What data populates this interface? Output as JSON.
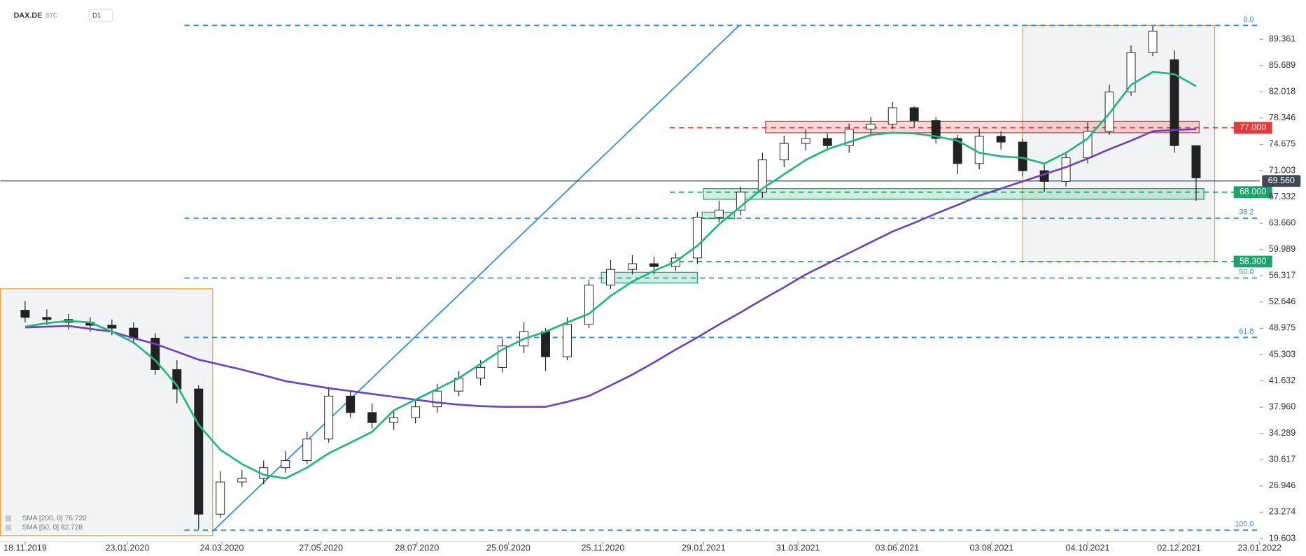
{
  "header": {
    "symbol": "DAX.DE",
    "tag": "STC",
    "timeframe": "D1"
  },
  "chart_data": {
    "type": "candlestick",
    "xlim": [
      "2019-11-02",
      "2022-01-23"
    ],
    "ylim": [
      19.14,
      94.85
    ],
    "xticks": [
      {
        "value": "2019-11-18",
        "label": "18.11.2019"
      },
      {
        "value": "2020-01-23",
        "label": "23.01.2020"
      },
      {
        "value": "2020-03-24",
        "label": "24.03.2020"
      },
      {
        "value": "2020-05-27",
        "label": "27.05.2020"
      },
      {
        "value": "2020-07-28",
        "label": "28.07.2020"
      },
      {
        "value": "2020-09-25",
        "label": "25.09.2020"
      },
      {
        "value": "2020-11-25",
        "label": "25.11.2020"
      },
      {
        "value": "2021-01-29",
        "label": "29.01.2021"
      },
      {
        "value": "2021-03-31",
        "label": "31.03.2021"
      },
      {
        "value": "2021-06-03",
        "label": "03.06.2021"
      },
      {
        "value": "2021-08-03",
        "label": "03.08.2021"
      },
      {
        "value": "2021-10-04",
        "label": "04.10.2021"
      },
      {
        "value": "2021-12-02",
        "label": "02.12.2021"
      },
      {
        "value": "2022-01-23",
        "label": "23.01.2022"
      }
    ],
    "yticks": [
      89.361,
      85.689,
      82.018,
      78.346,
      74.675,
      71.003,
      67.332,
      {
        "value": 63.66,
        "label": "63.660"
      },
      59.989,
      56.317,
      52.646,
      48.975,
      45.303,
      41.632,
      {
        "value": 37.96,
        "label": "37.960"
      },
      34.289,
      30.617,
      26.946,
      23.274,
      19.603
    ],
    "candles": {
      "x": [
        "2019-11-18",
        "2019-12-02",
        "2019-12-16",
        "2019-12-30",
        "2020-01-13",
        "2020-01-27",
        "2020-02-10",
        "2020-02-24",
        "2020-03-09",
        "2020-03-23",
        "2020-04-06",
        "2020-04-20",
        "2020-05-04",
        "2020-05-18",
        "2020-06-01",
        "2020-06-15",
        "2020-06-29",
        "2020-07-13",
        "2020-07-27",
        "2020-08-10",
        "2020-08-24",
        "2020-09-07",
        "2020-09-21",
        "2020-10-05",
        "2020-10-19",
        "2020-11-02",
        "2020-11-16",
        "2020-11-30",
        "2020-12-14",
        "2020-12-28",
        "2021-01-11",
        "2021-01-25",
        "2021-02-08",
        "2021-02-22",
        "2021-03-08",
        "2021-03-22",
        "2021-04-05",
        "2021-04-19",
        "2021-05-03",
        "2021-05-17",
        "2021-05-31",
        "2021-06-14",
        "2021-06-28",
        "2021-07-12",
        "2021-07-26",
        "2021-08-09",
        "2021-08-23",
        "2021-09-06",
        "2021-09-20",
        "2021-10-04",
        "2021-10-18",
        "2021-11-01",
        "2021-11-15",
        "2021-11-29",
        "2021-12-13"
      ],
      "open": [
        51.5,
        50.5,
        50.2,
        49.8,
        49.4,
        49.0,
        47.6,
        43.2,
        40.5,
        23.0,
        27.5,
        28.0,
        29.5,
        30.5,
        33.5,
        39.5,
        37.2,
        35.8,
        36.5,
        38.0,
        40.2,
        42.0,
        43.5,
        46.5,
        48.5,
        45.0,
        49.5,
        55.0,
        57.2,
        58.0,
        57.6,
        58.8,
        64.5,
        65.5,
        68.0,
        72.5,
        74.8,
        75.5,
        74.5,
        76.8,
        77.5,
        79.8,
        78.0,
        75.5,
        72.0,
        75.8,
        75.0,
        71.0,
        69.5,
        72.8,
        76.5,
        82.0,
        87.5,
        86.5,
        74.5
      ],
      "high": [
        52.8,
        51.6,
        51.0,
        50.5,
        50.2,
        49.8,
        48.3,
        44.5,
        41.0,
        29.0,
        29.2,
        30.5,
        31.8,
        34.5,
        40.8,
        40.2,
        38.5,
        37.5,
        39.0,
        41.2,
        43.0,
        44.5,
        47.5,
        49.8,
        49.0,
        50.5,
        55.8,
        58.5,
        59.2,
        59.0,
        59.5,
        65.2,
        66.8,
        68.8,
        73.5,
        75.9,
        76.8,
        76.2,
        77.6,
        78.5,
        80.6,
        80.0,
        78.5,
        76.0,
        76.9,
        76.5,
        75.5,
        72.0,
        73.6,
        77.8,
        83.0,
        88.5,
        91.2,
        87.8,
        71.2
      ],
      "low": [
        49.8,
        49.4,
        48.8,
        48.5,
        48.0,
        46.8,
        42.5,
        38.5,
        20.9,
        22.5,
        26.8,
        27.2,
        28.8,
        30.0,
        33.0,
        36.5,
        35.0,
        34.8,
        35.7,
        37.2,
        39.5,
        41.0,
        42.8,
        45.5,
        43.0,
        44.5,
        49.0,
        54.5,
        56.5,
        56.5,
        57.0,
        58.0,
        63.8,
        64.8,
        67.2,
        71.5,
        73.8,
        73.8,
        73.5,
        75.8,
        76.8,
        77.0,
        74.8,
        70.5,
        71.2,
        74.0,
        70.2,
        68.0,
        68.8,
        72.0,
        76.0,
        81.5,
        87.0,
        73.5,
        66.8
      ],
      "close": [
        50.5,
        50.2,
        49.8,
        49.4,
        49.0,
        47.6,
        43.2,
        40.5,
        23.0,
        27.5,
        28.0,
        29.5,
        30.5,
        33.5,
        39.5,
        37.2,
        35.8,
        36.5,
        38.0,
        40.2,
        42.0,
        43.5,
        46.5,
        48.5,
        45.0,
        49.5,
        55.0,
        57.2,
        58.0,
        57.6,
        58.8,
        64.5,
        65.5,
        68.0,
        72.5,
        74.8,
        75.5,
        74.5,
        76.8,
        77.5,
        79.8,
        78.0,
        75.5,
        72.0,
        75.8,
        75.0,
        71.0,
        69.5,
        72.8,
        76.5,
        82.0,
        87.5,
        90.5,
        74.5,
        70.0
      ],
      "up_color": "#ffffff",
      "down_color": "#222222"
    },
    "series": [
      {
        "name": "SMA [200, 0] 76.720",
        "color": "#6a42c2",
        "values": [
          49.1,
          49.2,
          49.3,
          48.9,
          48.5,
          47.6,
          46.8,
          45.7,
          44.6,
          43.9,
          43.2,
          42.4,
          41.6,
          41.1,
          40.6,
          40.2,
          39.8,
          39.4,
          39.0,
          38.6,
          38.3,
          38.1,
          38.0,
          38.0,
          38.0,
          38.7,
          39.5,
          41.0,
          42.5,
          44.2,
          46.0,
          47.7,
          49.5,
          51.2,
          53.0,
          54.7,
          56.5,
          58.0,
          59.5,
          61.0,
          62.5,
          63.7,
          65.0,
          66.2,
          67.5,
          68.5,
          69.5,
          70.5,
          71.5,
          72.7,
          74.0,
          75.2,
          76.5,
          76.7,
          76.8
        ]
      },
      {
        "name": "SMA [50, 0] 82.728",
        "color": "#1fb77e",
        "values": [
          49.2,
          49.7,
          50.0,
          49.8,
          48.5,
          47.0,
          44.5,
          41.0,
          35.5,
          32.0,
          30.0,
          28.5,
          28.0,
          29.5,
          31.5,
          33.0,
          34.5,
          37.5,
          39.0,
          40.5,
          42.0,
          44.0,
          46.0,
          47.5,
          48.5,
          49.8,
          51.0,
          53.5,
          55.5,
          57.0,
          58.3,
          60.5,
          63.5,
          66.0,
          68.5,
          70.5,
          72.5,
          74.0,
          75.0,
          76.0,
          76.3,
          76.2,
          75.8,
          75.2,
          73.5,
          73.0,
          72.8,
          72.0,
          73.5,
          75.5,
          79.0,
          83.0,
          84.8,
          84.5,
          82.8
        ]
      }
    ],
    "levels": [
      {
        "price": 77,
        "label": "77.000",
        "color": "#e23b3b"
      },
      {
        "price": 68,
        "label": "68.000",
        "color": "#1aa36a"
      },
      {
        "price": 58.3,
        "label": "58.300",
        "color": "#1aa36a"
      },
      {
        "price": 69.56,
        "label": "69.560",
        "color": "#3d4a55"
      }
    ],
    "fib_levels": [
      {
        "price": 91.3,
        "label": "0.0"
      },
      {
        "price": 64.36,
        "label": "38.2"
      },
      {
        "price": 56.0,
        "label": "50.0"
      },
      {
        "price": 47.7,
        "label": "61.8"
      },
      {
        "price": 20.77,
        "label": "100.0"
      }
    ],
    "fib_color": "#2f8ee8",
    "zones": [
      {
        "from": "2021-03-10",
        "to": "2021-12-15",
        "low": 76.3,
        "high": 77.9,
        "color": "#e23b3b"
      },
      {
        "from": "2021-01-29",
        "to": "2021-12-18",
        "low": 67.0,
        "high": 68.5,
        "color": "#1aa36a"
      },
      {
        "from": "2021-01-28",
        "to": "2021-02-18",
        "low": 64.3,
        "high": 65.2,
        "color": "#1aa36a"
      },
      {
        "from": "2020-11-24",
        "to": "2021-01-25",
        "low": 55.3,
        "high": 56.8,
        "color": "#1aa36a"
      }
    ],
    "boxes": [
      {
        "from": "2019-11-02",
        "to": "2020-03-18",
        "low": 20.0,
        "high": 54.5
      },
      {
        "from": "2021-08-23",
        "to": "2021-12-25",
        "low": 58.3,
        "high": 91.3
      }
    ],
    "trend_line": {
      "x": [
        "2020-03-18",
        "2021-02-21"
      ],
      "y": [
        20.6,
        91.3
      ],
      "color": "#2f8ee8"
    }
  }
}
